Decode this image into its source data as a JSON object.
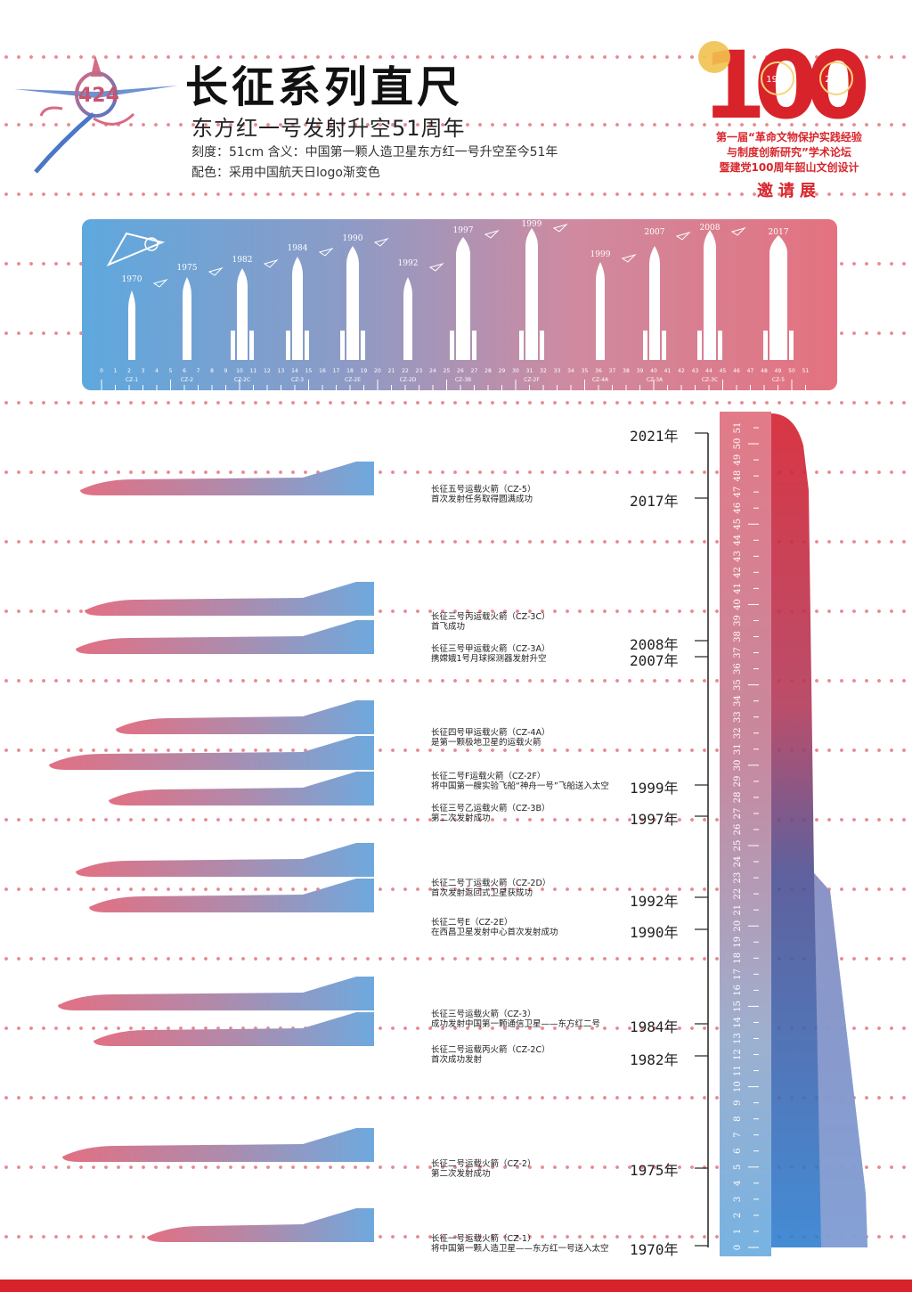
{
  "header": {
    "title": "长征系列直尺",
    "subtitle": "东方红一号发射升空51周年",
    "scale_line": "刻度：51cm  含义：中国第一颗人造卫星东方红一号升空至今51年",
    "color_line": "配色：采用中国航天日logo渐变色",
    "logo_text": "424"
  },
  "badge": {
    "number": "100",
    "year_left": "1921",
    "year_right": "2021",
    "line1": "第一届“革命文物保护实践经验",
    "line2": "与制度创新研究”学术论坛",
    "line3": "暨建党100周年韶山文创设计",
    "invite": "邀请展"
  },
  "colors": {
    "red": "#d9232a",
    "pink": "#e4727f",
    "blue": "#5ea8de",
    "dot": "#e68a92"
  },
  "ruler_top": {
    "years": [
      "1970",
      "1975",
      "1982",
      "1984",
      "1990",
      "1992",
      "1997",
      "1999",
      "1999",
      "2007",
      "2008",
      "2017"
    ],
    "codes": [
      "CZ-1",
      "CZ-2",
      "CZ-2C",
      "CZ-3",
      "CZ-2E",
      "CZ-2D",
      "CZ-3B",
      "CZ-2F",
      "CZ-4A",
      "CZ-3A",
      "CZ-3C",
      "CZ-5"
    ]
  },
  "events": [
    {
      "title": "长征五号运载火箭（CZ-5）",
      "desc": "首次发射任务取得圆满成功",
      "year": "2017年"
    },
    {
      "title": "长征三号丙运载火箭（CZ-3C）",
      "desc": "首飞成功",
      "year": "2008年"
    },
    {
      "title": "长征三号甲运载火箭（CZ-3A）",
      "desc": "携嫦娥1号月球探测器发射升空",
      "year": "2007年"
    },
    {
      "title": "长征四号甲运载火箭（CZ-4A）",
      "desc": "是第一颗极地卫星的运载火箭",
      "year": ""
    },
    {
      "title": "长征二号F运载火箭（CZ-2F）",
      "desc": "将中国第一艘实验飞船“神舟一号”飞船送入太空",
      "year": "1999年"
    },
    {
      "title": "长征三号乙运载火箭（CZ-3B）",
      "desc": "第二次发射成功",
      "year": "1997年"
    },
    {
      "title": "长征二号丁运载火箭（CZ-2D）",
      "desc": "首次发射返回式卫星获成功",
      "year": "1992年"
    },
    {
      "title": "长征二号E（CZ-2E）",
      "desc": "在西昌卫星发射中心首次发射成功",
      "year": "1990年"
    },
    {
      "title": "长征三号运载火箭（CZ-3）",
      "desc": "成功发射中国第一颗通信卫星——东方红二号",
      "year": "1984年"
    },
    {
      "title": "长征二号运载丙火箭（CZ-2C）",
      "desc": "首次成功发射",
      "year": "1982年"
    },
    {
      "title": "长征二号运载火箭（CZ-2）",
      "desc": "第二次发射成功",
      "year": "1975年"
    },
    {
      "title": "长征一号运载火箭（CZ-1）",
      "desc": "将中国第一颗人造卫星——东方红一号送入太空",
      "year": "1970年"
    }
  ],
  "top_year": "2021年",
  "big_ruler": {
    "max": 51,
    "unit": "cm"
  }
}
